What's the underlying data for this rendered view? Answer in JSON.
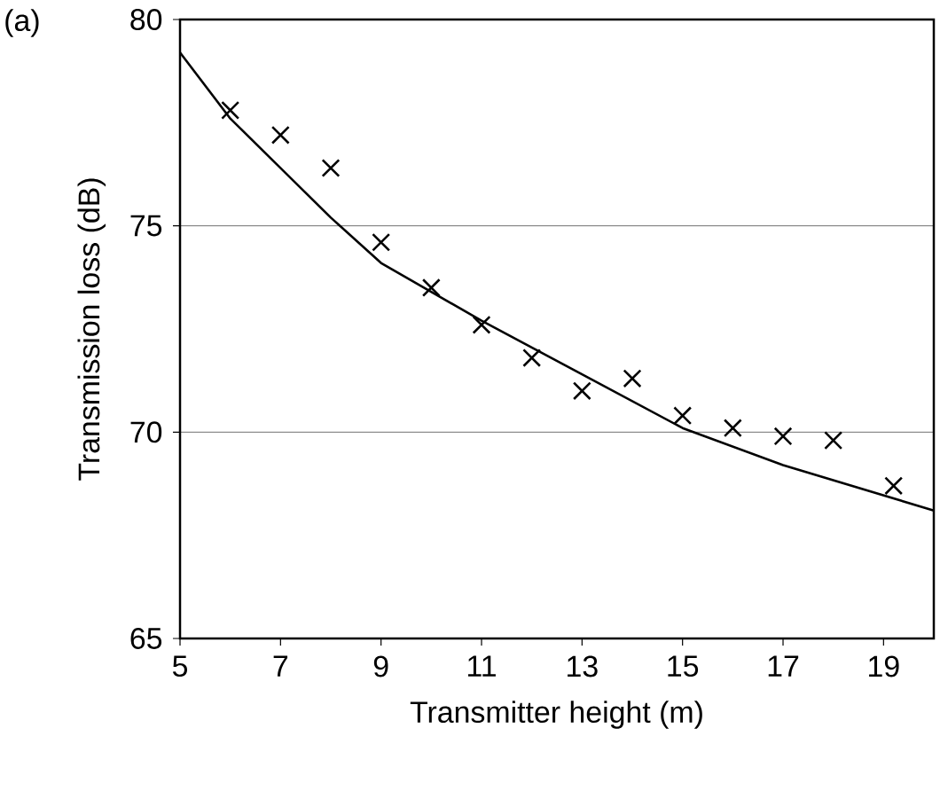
{
  "chart_data": {
    "type": "scatter",
    "xlabel": "Transmitter height (m)",
    "ylabel": "Transmission loss (dB)",
    "annotations": [
      "(a)"
    ],
    "xlim": [
      5,
      20
    ],
    "ylim": [
      65,
      80
    ],
    "xticks": [
      5,
      7,
      9,
      11,
      13,
      15,
      17,
      19
    ],
    "yticks": [
      65,
      70,
      75,
      80
    ],
    "grid": "y",
    "series": [
      {
        "marker": "cross",
        "color": "#000000",
        "x": [
          6,
          7,
          8,
          9,
          10,
          11,
          12,
          13,
          14,
          15,
          16,
          17,
          18,
          19.2
        ],
        "values": [
          77.8,
          77.2,
          76.4,
          74.6,
          73.5,
          72.6,
          71.8,
          71.0,
          71.3,
          70.4,
          70.1,
          69.9,
          69.8,
          68.7
        ]
      },
      {
        "type": "line",
        "marker": "none",
        "line_style": "solid",
        "color": "#000000",
        "x": [
          5,
          6,
          7,
          8,
          9,
          11,
          13,
          15,
          17,
          20
        ],
        "values": [
          79.2,
          77.6,
          76.4,
          75.2,
          74.1,
          72.7,
          71.4,
          70.1,
          69.2,
          68.1
        ]
      }
    ]
  }
}
